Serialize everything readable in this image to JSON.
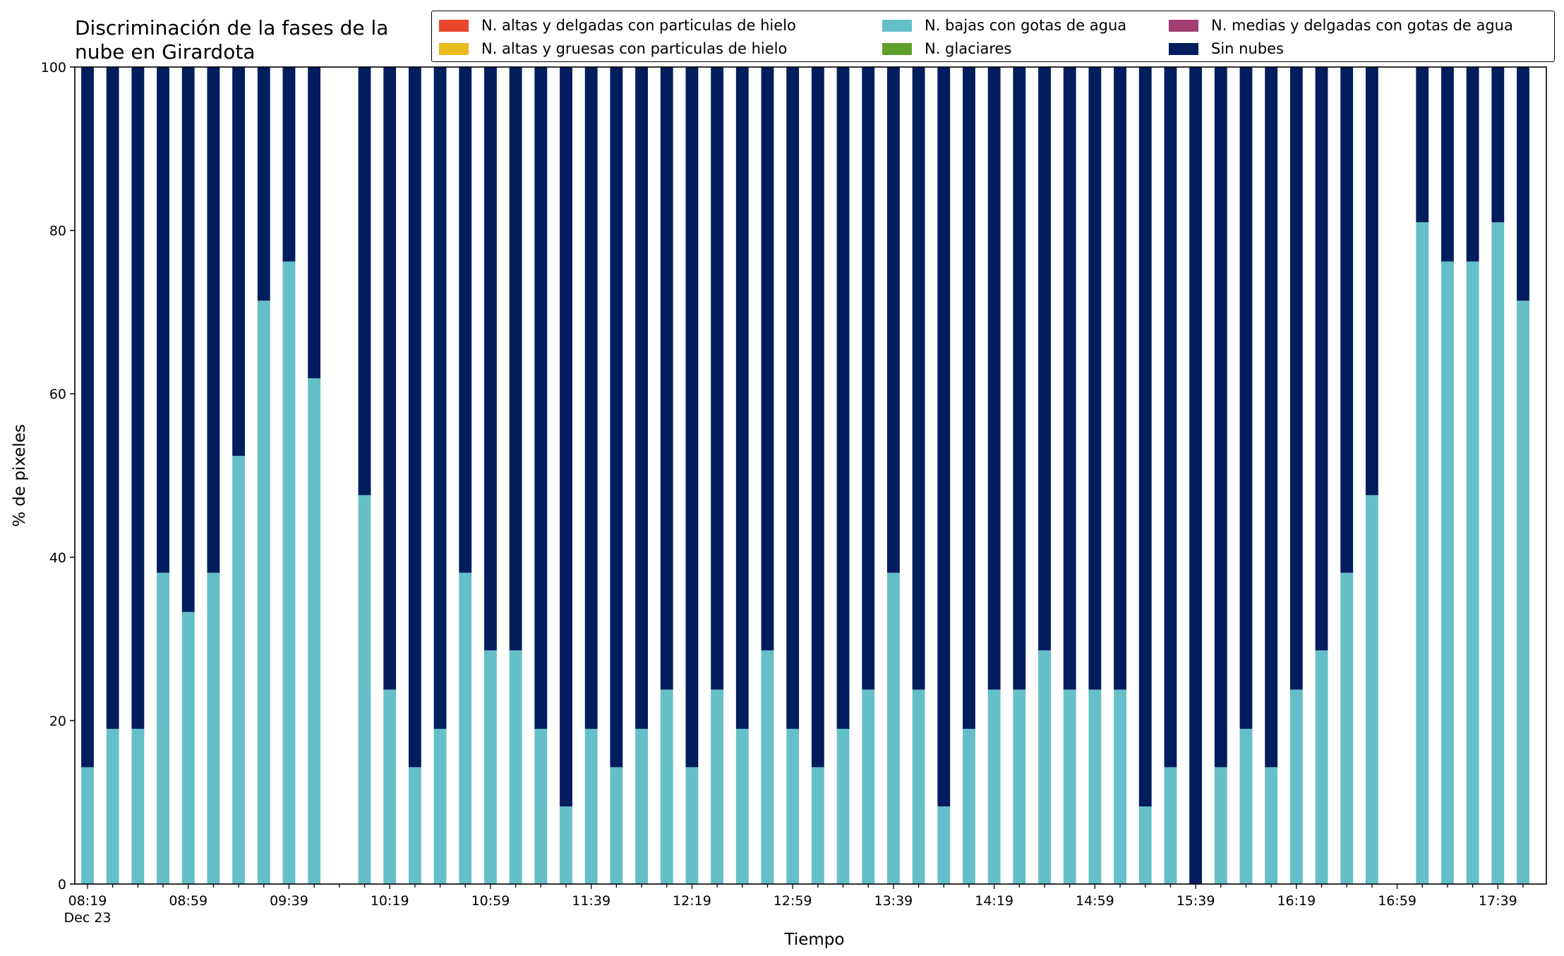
{
  "chart_data": {
    "type": "bar",
    "stacked": true,
    "title": "Discriminación de la fases de la\nnube en Girardota",
    "title_lines": [
      "Discriminación de la fases de la",
      "nube en Girardota"
    ],
    "xlabel": "Tiempo",
    "ylabel": "% de pixeles",
    "ylim": [
      0,
      100
    ],
    "yticks": [
      0,
      20,
      40,
      60,
      80,
      100
    ],
    "x_date_label": "Dec 23",
    "xtick_labels": [
      "08:19",
      "08:59",
      "09:39",
      "10:19",
      "10:59",
      "11:39",
      "12:19",
      "12:59",
      "13:39",
      "14:19",
      "14:59",
      "15:39",
      "16:19",
      "16:59",
      "17:39"
    ],
    "x_minutes_start": "08:19",
    "interval_minutes": 10,
    "legend_placement": "top-right",
    "legend": [
      {
        "name": "N. altas y delgadas con particulas de hielo",
        "color": "#e8472e"
      },
      {
        "name": "N. bajas con gotas de agua",
        "color": "#65bfc9"
      },
      {
        "name": "N. medias y delgadas con gotas de agua",
        "color": "#a43d72"
      },
      {
        "name": "N. altas y gruesas con particulas de hielo",
        "color": "#e8bb1c"
      },
      {
        "name": "N. glaciares",
        "color": "#5f9f2c"
      },
      {
        "name": "Sin nubes",
        "color": "#021d5e"
      }
    ],
    "categories": [
      "08:19",
      "08:29",
      "08:39",
      "08:49",
      "08:59",
      "09:09",
      "09:19",
      "09:29",
      "09:39",
      "09:49",
      "09:59",
      "10:09",
      "10:19",
      "10:29",
      "10:39",
      "10:49",
      "10:59",
      "11:09",
      "11:19",
      "11:29",
      "11:39",
      "11:49",
      "11:59",
      "12:09",
      "12:19",
      "12:29",
      "12:39",
      "12:49",
      "12:59",
      "13:09",
      "13:19",
      "13:29",
      "13:39",
      "13:49",
      "13:59",
      "14:09",
      "14:19",
      "14:29",
      "14:39",
      "14:49",
      "14:59",
      "15:09",
      "15:19",
      "15:29",
      "15:39",
      "15:49",
      "15:59",
      "16:09",
      "16:19",
      "16:29",
      "16:39",
      "16:49",
      "16:59",
      "17:09",
      "17:19",
      "17:29",
      "17:39",
      "17:49"
    ],
    "series": [
      {
        "name": "N. bajas con gotas de agua",
        "color": "#65bfc9",
        "values": [
          14.3,
          19.0,
          19.0,
          38.1,
          33.3,
          38.1,
          52.4,
          71.4,
          76.2,
          61.9,
          null,
          47.6,
          23.8,
          14.3,
          19.0,
          38.1,
          28.6,
          28.6,
          19.0,
          9.5,
          19.0,
          14.3,
          19.0,
          23.8,
          14.3,
          23.8,
          19.0,
          28.6,
          19.0,
          14.3,
          19.0,
          23.8,
          38.1,
          23.8,
          9.5,
          19.0,
          23.8,
          23.8,
          28.6,
          23.8,
          23.8,
          23.8,
          9.5,
          14.3,
          0,
          14.3,
          19.0,
          14.3,
          23.8,
          28.6,
          38.1,
          47.6,
          null,
          81.0,
          76.2,
          76.2,
          81.0,
          71.4
        ]
      },
      {
        "name": "Sin nubes",
        "color": "#021d5e",
        "values": [
          85.7,
          81.0,
          81.0,
          61.9,
          66.7,
          61.9,
          47.6,
          28.6,
          23.8,
          38.1,
          null,
          52.4,
          76.2,
          85.7,
          81.0,
          61.9,
          71.4,
          71.4,
          81.0,
          90.5,
          81.0,
          85.7,
          81.0,
          76.2,
          85.7,
          76.2,
          81.0,
          71.4,
          81.0,
          85.7,
          81.0,
          76.2,
          61.9,
          76.2,
          90.5,
          81.0,
          76.2,
          76.2,
          71.4,
          76.2,
          76.2,
          76.2,
          90.5,
          85.7,
          100,
          85.7,
          81.0,
          85.7,
          76.2,
          71.4,
          61.9,
          52.4,
          null,
          19.0,
          23.8,
          23.8,
          19.0,
          28.6
        ]
      }
    ]
  }
}
